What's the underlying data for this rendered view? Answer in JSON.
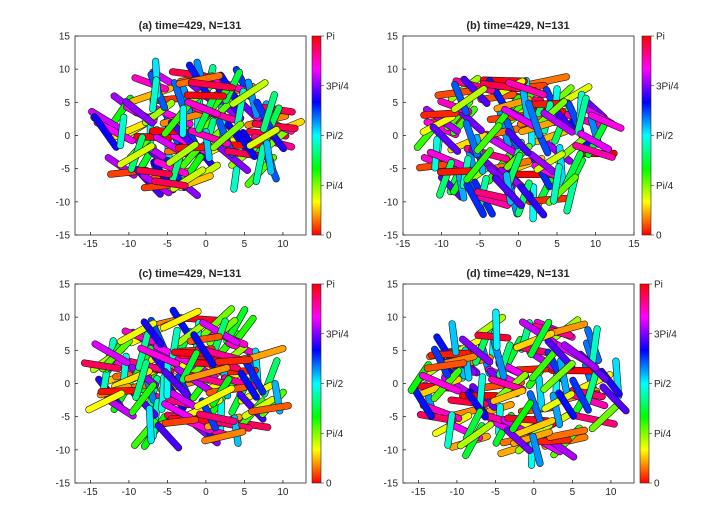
{
  "chart_data": [
    {
      "type": "scatter",
      "title": "(a) time=429, N=131",
      "xlim": [
        -17,
        13
      ],
      "ylim": [
        -15,
        15
      ],
      "xticks": [
        -15,
        -10,
        -5,
        0,
        5,
        10
      ],
      "yticks": [
        -15,
        -10,
        -5,
        0,
        5,
        10,
        15
      ],
      "x_tick_labels": [
        "-15",
        "-10",
        "-5",
        "0",
        "5",
        "10"
      ],
      "y_tick_labels": [
        "-15",
        "-10",
        "-5",
        "0",
        "5",
        "10",
        "15"
      ],
      "grid": false,
      "colorbar": {
        "position": "right",
        "range": [
          0,
          3.14159
        ],
        "tick_labels": [
          "0",
          "Pi/4",
          "Pi/2",
          "3Pi/4",
          "Pi"
        ]
      },
      "marks": "131 rod-shaped cells colored by orientation angle",
      "cluster": {
        "x_center": -1.5,
        "y_center": 0.5,
        "x_half_width": 12,
        "y_half_width": 9
      }
    },
    {
      "type": "scatter",
      "title": "(b) time=429, N=131",
      "xlim": [
        -15,
        15
      ],
      "ylim": [
        -15,
        15
      ],
      "xticks": [
        -15,
        -10,
        -5,
        0,
        5,
        10,
        15
      ],
      "yticks": [
        -15,
        -10,
        -5,
        0,
        5,
        10,
        15
      ],
      "x_tick_labels": [
        "-15",
        "-10",
        "-5",
        "0",
        "5",
        "10",
        "15"
      ],
      "y_tick_labels": [
        "-15",
        "-10",
        "-5",
        "0",
        "5",
        "10",
        "15"
      ],
      "grid": false,
      "colorbar": {
        "position": "right",
        "range": [
          0,
          3.14159
        ],
        "tick_labels": [
          "0",
          "Pi/4",
          "Pi/2",
          "3Pi/4",
          "Pi"
        ]
      },
      "marks": "131 rod-shaped cells colored by orientation angle",
      "cluster": {
        "x_center": 0,
        "y_center": -1,
        "x_half_width": 12,
        "y_half_width": 10
      }
    },
    {
      "type": "scatter",
      "title": "(c) time=429, N=131",
      "xlim": [
        -17,
        13
      ],
      "ylim": [
        -15,
        15
      ],
      "xticks": [
        -15,
        -10,
        -5,
        0,
        5,
        10
      ],
      "yticks": [
        -15,
        -10,
        -5,
        0,
        5,
        10,
        15
      ],
      "x_tick_labels": [
        "-15",
        "-10",
        "-5",
        "0",
        "5",
        "10"
      ],
      "y_tick_labels": [
        "-15",
        "-10",
        "-5",
        "0",
        "5",
        "10",
        "15"
      ],
      "grid": false,
      "colorbar": {
        "position": "right",
        "range": [
          0,
          3.14159
        ],
        "tick_labels": [
          "0",
          "Pi/4",
          "Pi/2",
          "3Pi/4",
          "Pi"
        ]
      },
      "marks": "131 rod-shaped cells colored by orientation angle",
      "cluster": {
        "x_center": -2,
        "y_center": 0.5,
        "x_half_width": 12,
        "y_half_width": 9.5
      }
    },
    {
      "type": "scatter",
      "title": "(d) time=429, N=131",
      "xlim": [
        -17,
        13
      ],
      "ylim": [
        -15,
        15
      ],
      "xticks": [
        -15,
        -10,
        -5,
        0,
        5,
        10
      ],
      "yticks": [
        -15,
        -10,
        -5,
        0,
        5,
        10,
        15
      ],
      "x_tick_labels": [
        "-15",
        "-10",
        "-5",
        "0",
        "5",
        "10"
      ],
      "y_tick_labels": [
        "-15",
        "-10",
        "-5",
        "0",
        "5",
        "10",
        "15"
      ],
      "grid": false,
      "colorbar": {
        "position": "right",
        "range": [
          0,
          3.14159
        ],
        "tick_labels": [
          "0",
          "Pi/4",
          "Pi/2",
          "3Pi/4",
          "Pi"
        ]
      },
      "marks": "131 rod-shaped cells colored by orientation angle",
      "cluster": {
        "x_center": -2,
        "y_center": -0.5,
        "x_half_width": 13,
        "y_half_width": 10
      }
    }
  ]
}
